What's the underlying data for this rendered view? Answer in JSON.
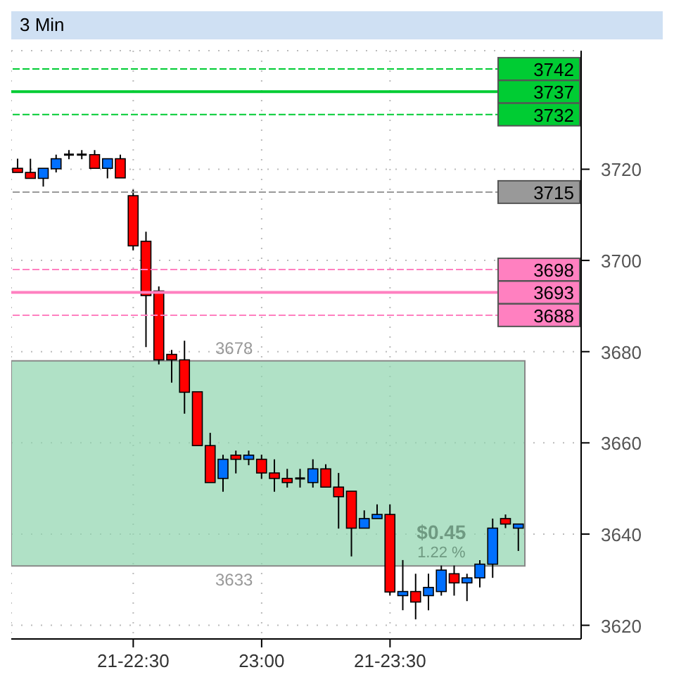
{
  "chart_data": {
    "type": "candlestick",
    "title": "3 Min",
    "categories": [
      null,
      null,
      null,
      null,
      null,
      null,
      null,
      null,
      null,
      "21-22:30",
      null,
      null,
      null,
      null,
      null,
      null,
      null,
      null,
      null,
      "23:00",
      null,
      null,
      null,
      null,
      null,
      null,
      null,
      null,
      null,
      "21-23:30",
      null,
      null,
      null,
      null,
      null,
      null,
      null,
      null,
      null,
      null
    ],
    "ohlc": [
      [
        3720.2,
        3722.3,
        3719.3,
        3719.3
      ],
      [
        3719.3,
        3722.3,
        3718.0,
        3718.0
      ],
      [
        3718.0,
        3720.2,
        3716.2,
        3720.2
      ],
      [
        3720.1,
        3723.2,
        3719.3,
        3722.3
      ],
      [
        3723.2,
        3724.2,
        3722.2,
        3723.2
      ],
      [
        3723.2,
        3724.2,
        3722.2,
        3723.2
      ],
      [
        3723.2,
        3724.2,
        3720.2,
        3720.2
      ],
      [
        3720.2,
        3722.3,
        3718.0,
        3722.3
      ],
      [
        3722.3,
        3723.2,
        3718.1,
        3718.1
      ],
      [
        3714.2,
        3715.5,
        3702.2,
        3703.2
      ],
      [
        3704.2,
        3706.3,
        3681.0,
        3692.3
      ],
      [
        3693.3,
        3694.3,
        3677.2,
        3678.2
      ],
      [
        3679.4,
        3680.4,
        3673.2,
        3678.2
      ],
      [
        3678.2,
        3682.4,
        3666.4,
        3671.1
      ],
      [
        3671.2,
        3671.2,
        3659.4,
        3659.4
      ],
      [
        3659.4,
        3662.2,
        3651.3,
        3651.3
      ],
      [
        3652.2,
        3657.4,
        3649.3,
        3656.4
      ],
      [
        3657.3,
        3658.3,
        3653.3,
        3656.4
      ],
      [
        3656.4,
        3658.3,
        3655.1,
        3657.3
      ],
      [
        3656.4,
        3657.4,
        3652.1,
        3653.4
      ],
      [
        3653.4,
        3656.4,
        3649.3,
        3652.2
      ],
      [
        3652.2,
        3654.3,
        3650.2,
        3651.3
      ],
      [
        3652.2,
        3654.3,
        3650.2,
        3652.2
      ],
      [
        3651.3,
        3656.4,
        3650.2,
        3654.3
      ],
      [
        3654.3,
        3655.3,
        3650.3,
        3650.3
      ],
      [
        3650.3,
        3653.4,
        3641.2,
        3648.2
      ],
      [
        3649.4,
        3649.4,
        3635.1,
        3641.3
      ],
      [
        3641.3,
        3645.2,
        3641.3,
        3643.4
      ],
      [
        3643.4,
        3646.5,
        3643.4,
        3644.3
      ],
      [
        3644.3,
        3646.5,
        3626.5,
        3627.3
      ],
      [
        3626.5,
        3634.3,
        3623.3,
        3627.4
      ],
      [
        3627.4,
        3631.3,
        3621.3,
        3625.1
      ],
      [
        3626.5,
        3631.3,
        3623.3,
        3628.3
      ],
      [
        3627.4,
        3633.1,
        3626.5,
        3632.1
      ],
      [
        3631.3,
        3633.1,
        3626.5,
        3629.3
      ],
      [
        3629.3,
        3631.3,
        3625.3,
        3630.4
      ],
      [
        3630.4,
        3634.3,
        3628.3,
        3633.4
      ],
      [
        3633.4,
        3643.4,
        3630.4,
        3641.3
      ],
      [
        3643.4,
        3644.3,
        3641.3,
        3642.2
      ],
      [
        3641.3,
        3642.2,
        3636.3,
        3642.2
      ]
    ],
    "colors": [
      "#ff0000",
      "#ff0000",
      "#0070ff",
      "#0070ff",
      "#000000",
      "#000000",
      "#ff0000",
      "#0070ff",
      "#ff0000",
      "#ff0000",
      "#ff0000",
      "#ff0000",
      "#ff0000",
      "#ff0000",
      "#ff0000",
      "#ff0000",
      "#0070ff",
      "#ff0000",
      "#0070ff",
      "#ff0000",
      "#ff0000",
      "#ff0000",
      "#000000",
      "#0070ff",
      "#ff0000",
      "#ff0000",
      "#ff0000",
      "#0070ff",
      "#0070ff",
      "#ff0000",
      "#0070ff",
      "#ff0000",
      "#0070ff",
      "#0070ff",
      "#ff0000",
      "#0070ff",
      "#0070ff",
      "#0070ff",
      "#ff0000",
      "#0070ff"
    ],
    "ylim": [
      3617,
      3746
    ],
    "yticks": [
      3720,
      3700,
      3680,
      3660,
      3640,
      3620
    ],
    "grid": true,
    "ref_lines": [
      {
        "axis": "y",
        "value": 3742,
        "label": "3742",
        "color": "#00cc33",
        "line_style": "dashed"
      },
      {
        "axis": "y",
        "value": 3737,
        "label": "3737",
        "color": "#00cc33",
        "line_style": "solid"
      },
      {
        "axis": "y",
        "value": 3732,
        "label": "3732",
        "color": "#00cc33",
        "line_style": "dashed"
      },
      {
        "axis": "y",
        "value": 3715,
        "label": "3715",
        "color": "#999999",
        "line_style": "dashed"
      },
      {
        "axis": "y",
        "value": 3698,
        "label": "3698",
        "color": "#ff80c0",
        "line_style": "dashed"
      },
      {
        "axis": "y",
        "value": 3693,
        "label": "3693",
        "color": "#ff80c0",
        "line_style": "solid"
      },
      {
        "axis": "y",
        "value": 3688,
        "label": "3688",
        "color": "#ff80c0",
        "line_style": "dashed"
      }
    ],
    "bands": [
      {
        "axis": "y",
        "from": 3633,
        "to": 3678,
        "label": "3678",
        "color": "#8fd4ae"
      }
    ],
    "annotations": [
      "3633",
      "$0.45",
      "1.22 %"
    ]
  }
}
